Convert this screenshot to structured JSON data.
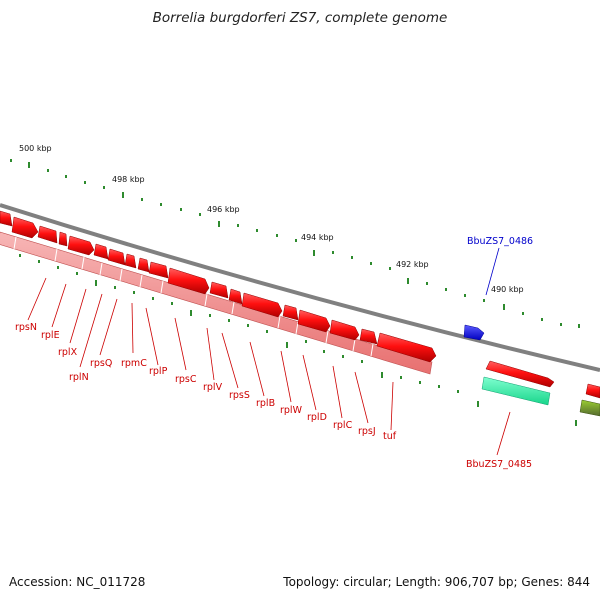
{
  "title": "Borrelia burgdorferi ZS7, complete genome",
  "footer": {
    "accession": "Accession: NC_011728",
    "summary": "Topology: circular; Length: 906,707 bp; Genes: 844"
  },
  "scale_labels": [
    "500 kbp",
    "498 kbp",
    "496 kbp",
    "494 kbp",
    "492 kbp",
    "490 kbp"
  ],
  "gene_labels": [
    "rpsN",
    "rplE",
    "rplX",
    "rplN",
    "rpsQ",
    "rpmC",
    "rplP",
    "rpsC",
    "rplV",
    "rpsS",
    "rplB",
    "rplW",
    "rplD",
    "rplC",
    "rpsJ",
    "tuf",
    "BbuZS7_0485",
    "BbuZS7_0486"
  ],
  "colors": {
    "gene_red": "#ff1010",
    "gene_red_dark": "#b00000",
    "rna_pink": "#f08a8a",
    "backbone": "#808080",
    "scale_tick": "#2e8b2e",
    "label_red": "#cc0000",
    "label_blue": "#0000cc",
    "blue_gene": "#1010ee",
    "teal_feature": "#22ee9a",
    "olive_feature": "#6b8e23"
  }
}
